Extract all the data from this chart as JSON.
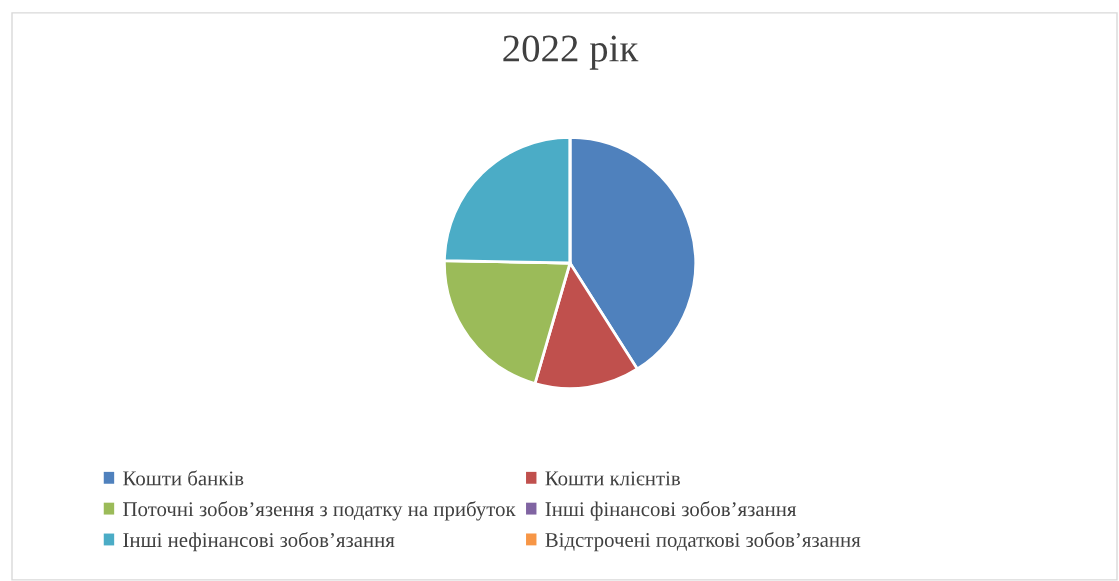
{
  "chart_data": {
    "type": "pie",
    "title": "2022 рік",
    "categories": [
      "Кошти банків",
      "Кошти клієнтів",
      "Поточні зобов’язення з податку на прибуток",
      "Інші фінансові зобов’язання",
      "Інші нефінансові зобов’язання",
      "Відстрочені податкові зобов’язання"
    ],
    "values": [
      41,
      13.5,
      20.8,
      0,
      24.7,
      0
    ],
    "colors": [
      "#4f81bd",
      "#c0504d",
      "#9bbb59",
      "#8064a2",
      "#4bacc6",
      "#f79646"
    ],
    "legend": "bottom"
  }
}
